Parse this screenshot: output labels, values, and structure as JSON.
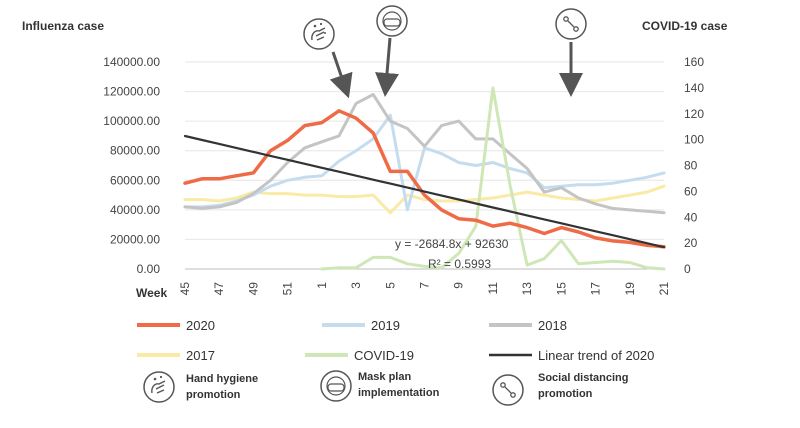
{
  "colors": {
    "s2020": "#ef6b47",
    "s2019": "#c5dcef",
    "s2018": "#c4c4c4",
    "s2017": "#f9eaa6",
    "covid": "#cfe7b6",
    "trend": "#333333",
    "grid": "#e6e6e6",
    "axis": "#bdbdbd",
    "arrow": "#555555"
  },
  "chart_data": {
    "type": "line",
    "left_axis_title": "Influenza case",
    "right_axis_title": "COVID-19 case",
    "x_axis_title": "Week",
    "left_ylim": [
      0,
      140000
    ],
    "right_ylim": [
      0,
      160
    ],
    "left_ticks": [
      "0.00",
      "20000.00",
      "40000.00",
      "60000.00",
      "80000.00",
      "100000.00",
      "120000.00",
      "140000.00"
    ],
    "right_ticks": [
      "0",
      "20",
      "40",
      "60",
      "80",
      "100",
      "120",
      "140",
      "160"
    ],
    "categories": [
      "45",
      "46",
      "47",
      "48",
      "49",
      "50",
      "51",
      "52",
      "1",
      "2",
      "3",
      "4",
      "5",
      "6",
      "7",
      "8",
      "9",
      "10",
      "11",
      "12",
      "13",
      "14",
      "15",
      "16",
      "17",
      "18",
      "19",
      "20",
      "21"
    ],
    "x_tick_labels": [
      "45",
      "47",
      "49",
      "51",
      "1",
      "3",
      "5",
      "7",
      "9",
      "11",
      "13",
      "15",
      "17",
      "19",
      "21"
    ],
    "series": [
      {
        "name": "2020",
        "color_key": "s2020",
        "axis": "left",
        "values": [
          58000,
          61000,
          61000,
          63000,
          65000,
          80000,
          87000,
          97000,
          99000,
          107000,
          102000,
          92000,
          66000,
          66000,
          50000,
          40000,
          34000,
          33000,
          29000,
          31000,
          28000,
          24000,
          28000,
          25000,
          21000,
          19000,
          18000,
          16000,
          15000
        ]
      },
      {
        "name": "2019",
        "color_key": "s2019",
        "axis": "left",
        "values": [
          42000,
          42000,
          43000,
          46000,
          50000,
          56000,
          60000,
          62000,
          63000,
          73000,
          80000,
          88000,
          104000,
          40000,
          82000,
          78000,
          72000,
          70000,
          72000,
          68000,
          65000,
          55000,
          56000,
          57000,
          57000,
          58000,
          60000,
          62000,
          65000
        ]
      },
      {
        "name": "2018",
        "color_key": "s2018",
        "axis": "left",
        "values": [
          42000,
          41000,
          42000,
          45000,
          51000,
          60000,
          72000,
          82000,
          86000,
          90000,
          112000,
          118000,
          100000,
          95000,
          83000,
          97000,
          100000,
          88000,
          88000,
          78000,
          68000,
          52000,
          55000,
          48000,
          44000,
          41000,
          40000,
          39000,
          38000
        ]
      },
      {
        "name": "2017",
        "color_key": "s2017",
        "axis": "left",
        "values": [
          47000,
          47000,
          46000,
          48000,
          52000,
          51000,
          51000,
          50000,
          50000,
          49000,
          49000,
          50000,
          38000,
          50000,
          47000,
          46000,
          46000,
          47000,
          48000,
          50000,
          52000,
          50000,
          48000,
          47000,
          46000,
          48000,
          50000,
          52000,
          56000
        ]
      },
      {
        "name": "COVID-19",
        "color_key": "covid",
        "axis": "right",
        "values": [
          null,
          null,
          null,
          null,
          null,
          null,
          null,
          null,
          0,
          1,
          1,
          9,
          9,
          4,
          2,
          1,
          12,
          33,
          140,
          65,
          3,
          8,
          22,
          4,
          5,
          6,
          5,
          1,
          0
        ]
      },
      {
        "name": "Linear trend of 2020",
        "color_key": "trend",
        "axis": "left",
        "type": "trend",
        "values": [
          89945,
          87260,
          84576,
          81891,
          79206,
          76522,
          73837,
          71152,
          68468,
          65783,
          63098,
          60414,
          57729,
          55044,
          52360,
          49675,
          46990,
          44306,
          41621,
          38936,
          36252,
          33567,
          30882,
          28198,
          25513,
          22828,
          20144,
          17459,
          14774
        ]
      }
    ],
    "annotations": {
      "equation": "y = -2684.8x + 92630",
      "r_squared": "R² = 0.5993"
    },
    "events": [
      {
        "name": "Hand hygiene promotion",
        "icon": "hand-hygiene-icon",
        "week": "3"
      },
      {
        "name": "Mask plan implementation",
        "icon": "mask-icon",
        "week": "5"
      },
      {
        "name": "Social distancing promotion",
        "icon": "social-distancing-icon",
        "week": "16"
      }
    ]
  },
  "legend": {
    "items": [
      "2020",
      "2019",
      "2018",
      "2017",
      "COVID-19",
      "Linear trend of 2020"
    ],
    "hand_hygiene": [
      "Hand hygiene",
      "promotion"
    ],
    "mask": [
      "Mask plan",
      "implementation"
    ],
    "social": [
      "Social distancing",
      "promotion"
    ]
  }
}
